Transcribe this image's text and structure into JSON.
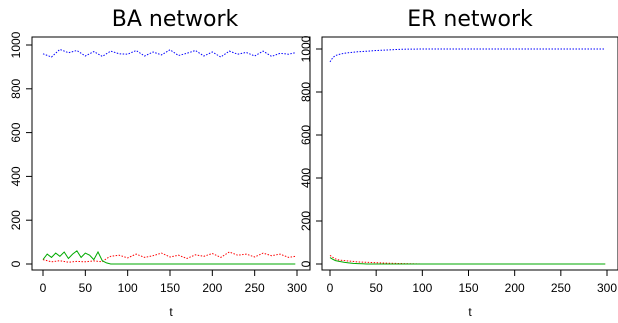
{
  "chart_data": [
    {
      "type": "line",
      "title": "BA network",
      "xlabel": "t",
      "ylabel": "",
      "xlim": [
        0,
        300
      ],
      "ylim": [
        0,
        1000
      ],
      "x_ticks": [
        "0",
        "50",
        "100",
        "150",
        "200",
        "250",
        "300"
      ],
      "y_ticks": [
        "0",
        "200",
        "400",
        "600",
        "800",
        "1000"
      ],
      "grid": false,
      "series": [
        {
          "color": "#0000ff",
          "style": "dotted",
          "x": [
            0,
            10,
            20,
            30,
            40,
            50,
            60,
            70,
            80,
            90,
            100,
            110,
            120,
            130,
            140,
            150,
            160,
            170,
            180,
            190,
            200,
            210,
            220,
            230,
            240,
            250,
            260,
            270,
            280,
            290,
            298
          ],
          "values": [
            960,
            945,
            980,
            965,
            975,
            950,
            970,
            948,
            972,
            960,
            958,
            975,
            950,
            968,
            955,
            978,
            952,
            962,
            975,
            950,
            968,
            945,
            972,
            958,
            966,
            950,
            972,
            948,
            962,
            958,
            965
          ]
        },
        {
          "color": "#ff0000",
          "style": "dotted",
          "x": [
            0,
            10,
            20,
            30,
            40,
            50,
            60,
            70,
            75,
            80,
            90,
            100,
            110,
            120,
            130,
            140,
            150,
            160,
            170,
            180,
            190,
            200,
            210,
            220,
            230,
            240,
            250,
            260,
            270,
            280,
            290,
            298
          ],
          "values": [
            20,
            10,
            15,
            8,
            12,
            10,
            14,
            10,
            25,
            35,
            40,
            28,
            45,
            30,
            38,
            50,
            32,
            40,
            25,
            42,
            35,
            48,
            30,
            55,
            40,
            45,
            32,
            50,
            38,
            45,
            30,
            35
          ]
        },
        {
          "color": "#00aa00",
          "style": "solid",
          "x": [
            0,
            5,
            10,
            15,
            20,
            25,
            30,
            35,
            40,
            45,
            50,
            55,
            60,
            65,
            70,
            75,
            80,
            100,
            150,
            200,
            250,
            298
          ],
          "values": [
            20,
            45,
            30,
            50,
            35,
            55,
            25,
            45,
            60,
            30,
            50,
            40,
            20,
            55,
            15,
            5,
            0,
            0,
            0,
            0,
            0,
            0
          ]
        }
      ]
    },
    {
      "type": "line",
      "title": "ER network",
      "xlabel": "t",
      "ylabel": "",
      "xlim": [
        0,
        300
      ],
      "ylim": [
        0,
        1000
      ],
      "x_ticks": [
        "0",
        "50",
        "100",
        "150",
        "200",
        "250",
        "300"
      ],
      "y_ticks": [
        "0",
        "200",
        "400",
        "600",
        "800",
        "1000"
      ],
      "grid": false,
      "series": [
        {
          "color": "#0000ff",
          "style": "dotted",
          "x": [
            0,
            3,
            6,
            10,
            15,
            20,
            30,
            40,
            50,
            60,
            70,
            80,
            100,
            150,
            200,
            250,
            298
          ],
          "values": [
            940,
            960,
            970,
            975,
            980,
            983,
            987,
            990,
            993,
            995,
            997,
            999,
            1000,
            1000,
            1000,
            1000,
            1000
          ]
        },
        {
          "color": "#ff0000",
          "style": "dotted",
          "x": [
            0,
            5,
            10,
            20,
            30,
            40,
            50,
            60,
            70,
            80,
            90,
            100,
            150,
            200,
            250,
            298
          ],
          "values": [
            40,
            25,
            18,
            14,
            10,
            8,
            6,
            4,
            3,
            2,
            1,
            0,
            0,
            0,
            0,
            0
          ]
        },
        {
          "color": "#00aa00",
          "style": "solid",
          "x": [
            0,
            3,
            6,
            10,
            15,
            20,
            25,
            30,
            35,
            40,
            50,
            60,
            80,
            100,
            150,
            200,
            250,
            298
          ],
          "values": [
            30,
            22,
            16,
            12,
            8,
            5,
            3,
            2,
            1,
            0,
            0,
            0,
            0,
            0,
            0,
            0,
            0,
            0
          ]
        }
      ]
    }
  ]
}
